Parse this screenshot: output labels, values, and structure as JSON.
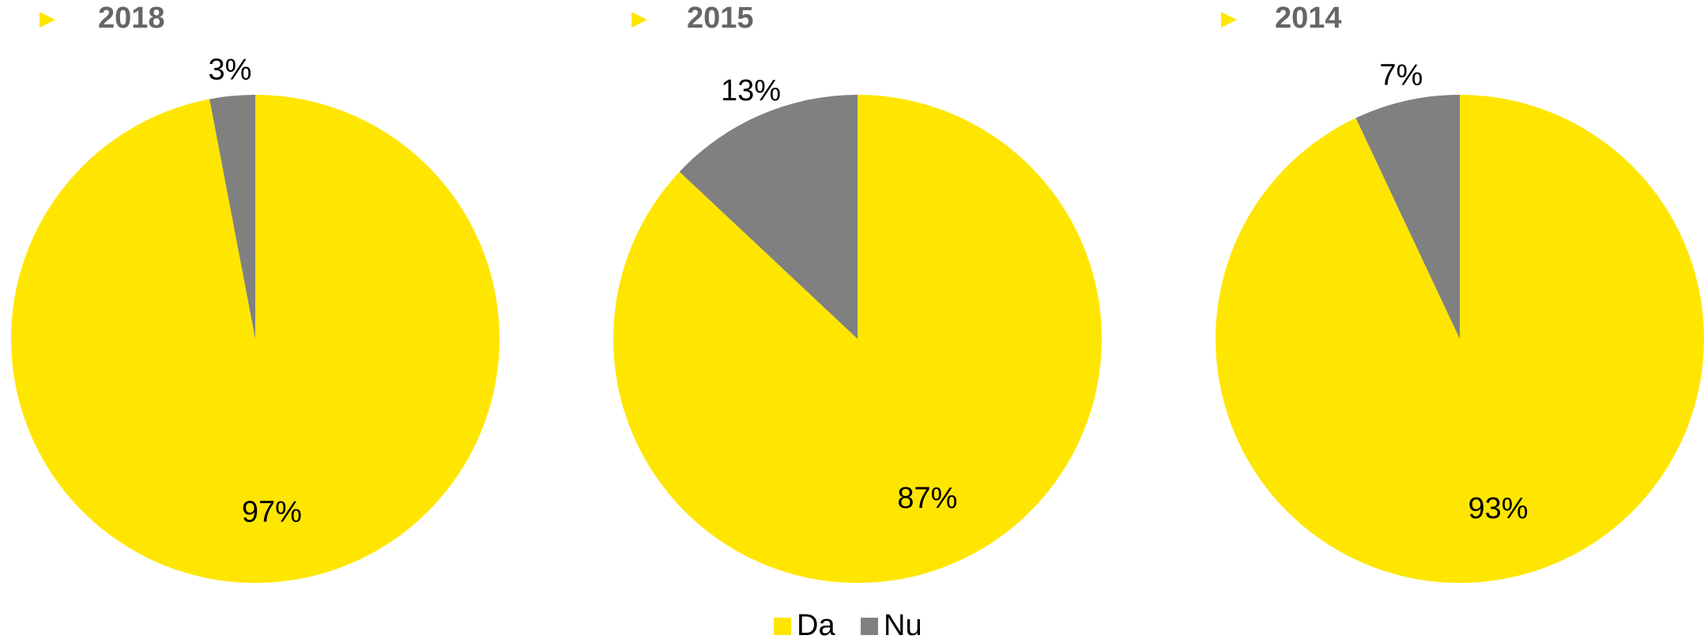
{
  "chart_data": [
    {
      "type": "pie",
      "title": "2018",
      "values": [
        97,
        3
      ],
      "value_labels": [
        "97%",
        "3%"
      ]
    },
    {
      "type": "pie",
      "title": "2015",
      "values": [
        87,
        13
      ],
      "value_labels": [
        "87%",
        "13%"
      ]
    },
    {
      "type": "pie",
      "title": "2014",
      "values": [
        93,
        7
      ],
      "value_labels": [
        "93%",
        "7%"
      ]
    }
  ],
  "legend": {
    "labels": [
      "Da",
      "Nu"
    ],
    "colors": [
      "#ffe600",
      "#808080"
    ]
  }
}
